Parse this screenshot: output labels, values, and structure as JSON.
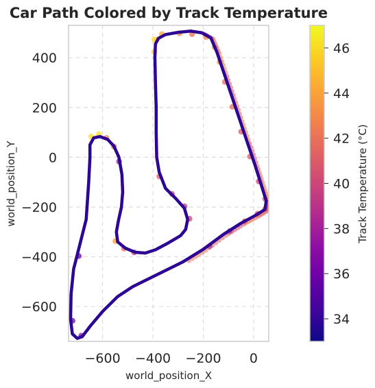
{
  "chart_data": {
    "type": "scatter",
    "title": "Car Path Colored by Track Temperature",
    "xlabel": "world_position_X",
    "ylabel": "world_position_Y",
    "xlim": [
      -735,
      60
    ],
    "ylim": [
      -740,
      530
    ],
    "xticks": [
      -600,
      -400,
      -200,
      0
    ],
    "yticks": [
      400,
      200,
      0,
      -200,
      -400,
      -600
    ],
    "xtick_labels": [
      "−600",
      "−400",
      "−200",
      "0"
    ],
    "ytick_labels": [
      "400",
      "200",
      "0",
      "−200",
      "−400",
      "−600"
    ],
    "grid": true,
    "colormap": "plasma",
    "colorbar": {
      "label": "Track Temperature (°C)",
      "range": [
        33.0,
        47.0
      ],
      "ticks": [
        34,
        36,
        38,
        40,
        42,
        44,
        46
      ],
      "tick_labels": [
        "34",
        "36",
        "38",
        "40",
        "42",
        "44",
        "46"
      ]
    },
    "series": [
      {
        "inner_line_temperature": 33.5,
        "outer_band_points": [
          {
            "x": -390,
            "y": 470,
            "t": 45
          },
          {
            "x": -370,
            "y": 492,
            "t": 44
          },
          {
            "x": -300,
            "y": 495,
            "t": 43
          },
          {
            "x": -250,
            "y": 492,
            "t": 42
          },
          {
            "x": -195,
            "y": 480,
            "t": 43
          },
          {
            "x": -160,
            "y": 440,
            "t": 43
          },
          {
            "x": -140,
            "y": 380,
            "t": 43
          },
          {
            "x": -120,
            "y": 300,
            "t": 42
          },
          {
            "x": -90,
            "y": 200,
            "t": 42
          },
          {
            "x": -55,
            "y": 100,
            "t": 41
          },
          {
            "x": -20,
            "y": 0,
            "t": 41
          },
          {
            "x": 15,
            "y": -100,
            "t": 40
          },
          {
            "x": 40,
            "y": -170,
            "t": 41
          },
          {
            "x": 40,
            "y": -210,
            "t": 42
          },
          {
            "x": 10,
            "y": -230,
            "t": 41
          },
          {
            "x": -40,
            "y": -260,
            "t": 40
          },
          {
            "x": -100,
            "y": -300,
            "t": 38
          },
          {
            "x": -180,
            "y": -360,
            "t": 37
          },
          {
            "x": -650,
            "y": 80,
            "t": 46
          },
          {
            "x": -620,
            "y": 90,
            "t": 46
          },
          {
            "x": -590,
            "y": 75,
            "t": 43
          },
          {
            "x": -560,
            "y": 40,
            "t": 42
          },
          {
            "x": -540,
            "y": -20,
            "t": 38
          },
          {
            "x": -555,
            "y": -340,
            "t": 44
          },
          {
            "x": -520,
            "y": -370,
            "t": 42
          },
          {
            "x": -480,
            "y": -385,
            "t": 40
          },
          {
            "x": -400,
            "y": 470,
            "t": 46
          },
          {
            "x": -400,
            "y": 420,
            "t": 45
          },
          {
            "x": -380,
            "y": -80,
            "t": 41
          },
          {
            "x": -330,
            "y": -150,
            "t": 40
          },
          {
            "x": -280,
            "y": -200,
            "t": 39
          },
          {
            "x": -260,
            "y": -250,
            "t": 40
          },
          {
            "x": -690,
            "y": -720,
            "t": 37
          },
          {
            "x": -725,
            "y": -660,
            "t": 36
          },
          {
            "x": -700,
            "y": -400,
            "t": 36
          }
        ]
      }
    ]
  }
}
